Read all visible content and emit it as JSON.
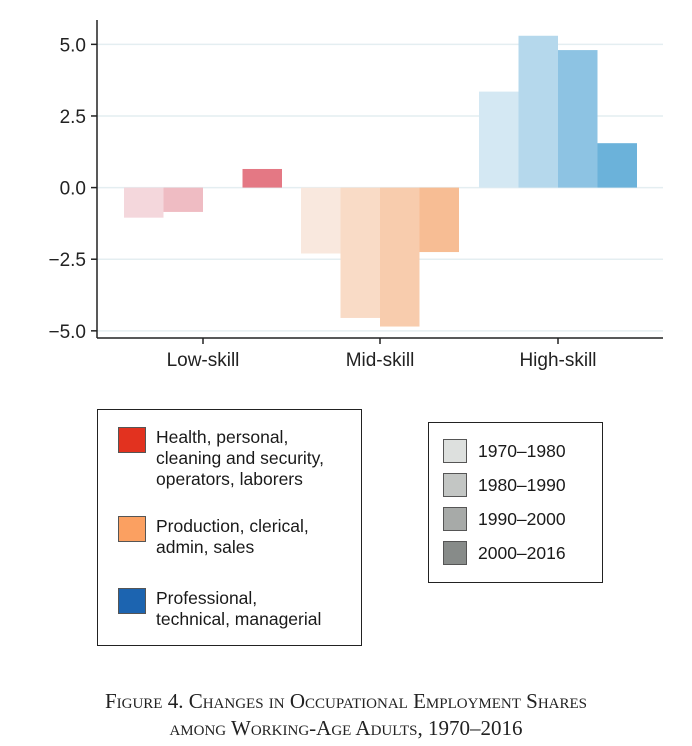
{
  "chart_data": {
    "type": "bar",
    "categories": [
      "Low-skill",
      "Mid-skill",
      "High-skill"
    ],
    "ylim": [
      -5.25,
      5.85
    ],
    "yticks": [
      5.0,
      2.5,
      0.0,
      -2.5,
      -5.0
    ],
    "ytick_labels": [
      "5.0",
      "2.5",
      "0.0",
      "−2.5",
      "−5.0"
    ],
    "grid": true,
    "period_order": [
      "1970–1980",
      "1980–1990",
      "1990–2000",
      "2000–2016"
    ],
    "series_values": {
      "Low-skill": [
        -1.05,
        -0.85,
        0.0,
        0.65
      ],
      "Mid-skill": [
        -2.3,
        -4.55,
        -4.85,
        -2.25
      ],
      "High-skill": [
        3.35,
        5.3,
        4.8,
        1.55
      ]
    },
    "bar_colors": {
      "Low-skill": [
        "#f4d7dc",
        "#efbcc3",
        "#e99aa4",
        "#e47884"
      ],
      "Mid-skill": [
        "#f9e8de",
        "#f9dbc6",
        "#f8ccad",
        "#f7bd94"
      ],
      "High-skill": [
        "#d4e8f3",
        "#b5d8ec",
        "#8dc3e3",
        "#6bb2da"
      ]
    },
    "legend_groups": [
      {
        "label": "Health, personal,\ncleaning and security,\noperators, laborers",
        "color": "#e2321f"
      },
      {
        "label": "Production, clerical,\nadmin, sales",
        "color": "#fba061"
      },
      {
        "label": "Professional,\ntechnical, managerial",
        "color": "#1c64b0"
      }
    ],
    "legend_periods": [
      {
        "label": "1970–1980",
        "color": "#dde0de"
      },
      {
        "label": "1980–1990",
        "color": "#c3c6c4"
      },
      {
        "label": "1990–2000",
        "color": "#a7aaa8"
      },
      {
        "label": "2000–2016",
        "color": "#878b89"
      }
    ]
  },
  "caption": {
    "line1": "Figure 4. Changes in Occupational Employment Shares",
    "line2": "among Working-Age Adults, 1970–2016"
  }
}
